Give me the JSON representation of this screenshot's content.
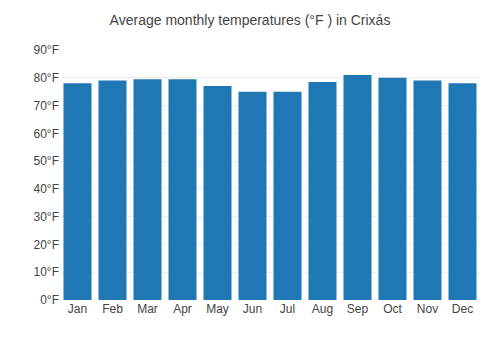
{
  "chart_data": {
    "type": "bar",
    "title": "Average monthly temperatures (°F ) in Crixás",
    "categories": [
      "Jan",
      "Feb",
      "Mar",
      "Apr",
      "May",
      "Jun",
      "Jul",
      "Aug",
      "Sep",
      "Oct",
      "Nov",
      "Dec"
    ],
    "values": [
      78,
      79,
      79.5,
      79.5,
      77,
      75,
      75,
      78.5,
      81,
      80,
      79,
      78
    ],
    "ylim": [
      0,
      90
    ],
    "yticks": [
      {
        "value": 0,
        "label": "0°F"
      },
      {
        "value": 10,
        "label": "10°F"
      },
      {
        "value": 20,
        "label": "20°F"
      },
      {
        "value": 30,
        "label": "30°F"
      },
      {
        "value": 40,
        "label": "40°F"
      },
      {
        "value": 50,
        "label": "50°F"
      },
      {
        "value": 60,
        "label": "60°F"
      },
      {
        "value": 70,
        "label": "70°F"
      },
      {
        "value": 80,
        "label": "80°F"
      },
      {
        "value": 90,
        "label": "90°F"
      }
    ],
    "grid": true
  }
}
